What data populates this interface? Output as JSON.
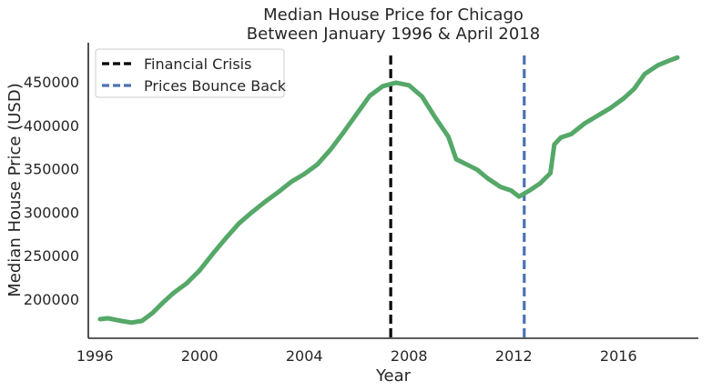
{
  "chart_data": {
    "type": "line",
    "title": "Median House Price for Chicago",
    "subtitle": "Between January 1996 & April 2018",
    "xlabel": "Year",
    "ylabel": "Median House Price (USD)",
    "xlim": [
      1995.75,
      2019.05
    ],
    "ylim": [
      155000,
      495000
    ],
    "x_ticks": [
      1996,
      2000,
      2004,
      2008,
      2012,
      2016
    ],
    "y_ticks": [
      200000,
      250000,
      300000,
      350000,
      400000,
      450000
    ],
    "grid": false,
    "legend_position": "top-left",
    "series": [
      {
        "color": "#55a868",
        "points": [
          [
            1996.2,
            177000
          ],
          [
            1996.5,
            178000
          ],
          [
            1997.0,
            175000
          ],
          [
            1997.4,
            173000
          ],
          [
            1997.8,
            175000
          ],
          [
            1998.2,
            184000
          ],
          [
            1998.6,
            196000
          ],
          [
            1999.0,
            207000
          ],
          [
            1999.5,
            218000
          ],
          [
            2000.0,
            233000
          ],
          [
            2000.5,
            252000
          ],
          [
            2001.0,
            270000
          ],
          [
            2001.5,
            287000
          ],
          [
            2002.0,
            300000
          ],
          [
            2002.5,
            312000
          ],
          [
            2003.0,
            323000
          ],
          [
            2003.5,
            335000
          ],
          [
            2004.0,
            344000
          ],
          [
            2004.5,
            355000
          ],
          [
            2005.0,
            372000
          ],
          [
            2005.5,
            392000
          ],
          [
            2006.0,
            413000
          ],
          [
            2006.5,
            434000
          ],
          [
            2007.0,
            445000
          ],
          [
            2007.5,
            449000
          ],
          [
            2008.0,
            446000
          ],
          [
            2008.5,
            433000
          ],
          [
            2009.0,
            409000
          ],
          [
            2009.5,
            387000
          ],
          [
            2009.8,
            361000
          ],
          [
            2010.2,
            355000
          ],
          [
            2010.6,
            349000
          ],
          [
            2011.0,
            339000
          ],
          [
            2011.5,
            329000
          ],
          [
            2011.9,
            325000
          ],
          [
            2012.2,
            318000
          ],
          [
            2012.6,
            325000
          ],
          [
            2013.0,
            333000
          ],
          [
            2013.4,
            345000
          ],
          [
            2013.55,
            378000
          ],
          [
            2013.8,
            386000
          ],
          [
            2014.2,
            390000
          ],
          [
            2014.7,
            402000
          ],
          [
            2015.2,
            411000
          ],
          [
            2015.7,
            420000
          ],
          [
            2016.2,
            431000
          ],
          [
            2016.6,
            442000
          ],
          [
            2017.0,
            459000
          ],
          [
            2017.5,
            469000
          ],
          [
            2017.9,
            474000
          ],
          [
            2018.25,
            478000
          ]
        ]
      }
    ],
    "vlines": [
      {
        "name": "Financial Crisis",
        "x": 2007.3,
        "color": "#000000",
        "dash": "10 5"
      },
      {
        "name": "Prices Bounce Back",
        "x": 2012.4,
        "color": "#4c72b0",
        "dash": "10 5"
      }
    ]
  }
}
